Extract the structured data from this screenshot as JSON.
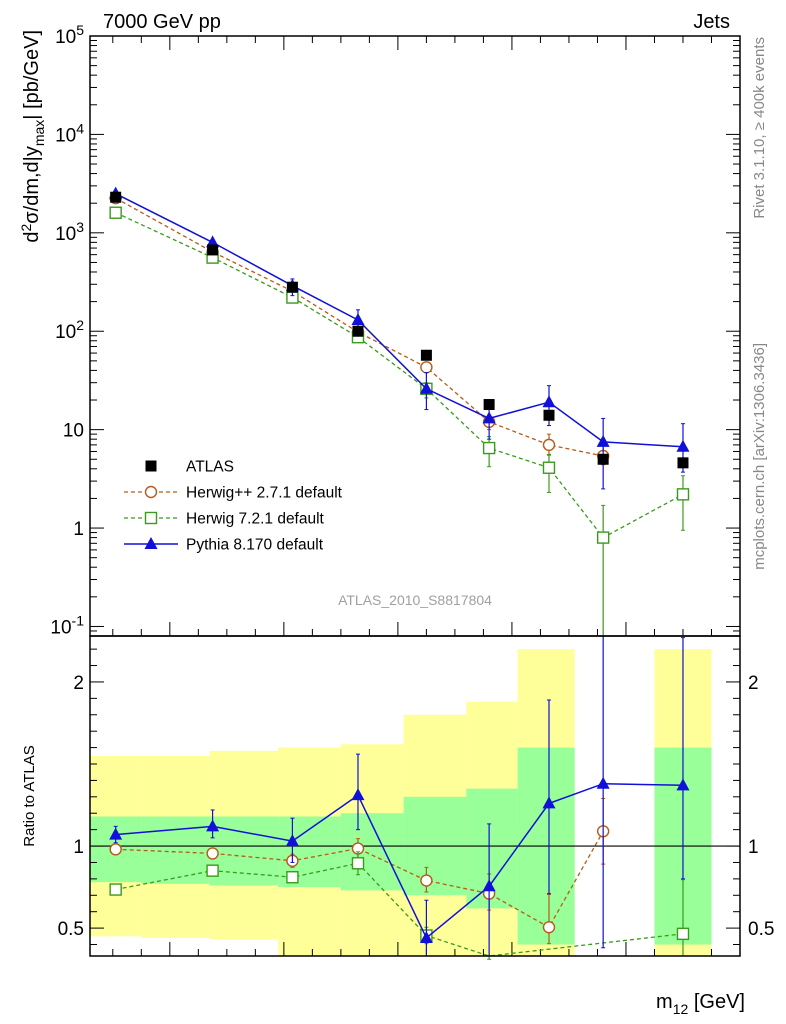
{
  "header": {
    "left": "7000 GeV pp",
    "right": "Jets"
  },
  "side_text": {
    "top": "Rivet 3.1.10, ≥ 400k events",
    "bottom": "mcplots.cern.ch [arXiv:1306.3436]"
  },
  "watermark": "ATLAS_2010_S8817804",
  "colors": {
    "data": "#000000",
    "herwigpp": "#b85a18",
    "herwig7": "#3a9a1c",
    "pythia": "#1010d8",
    "band_inner": "#99ff99",
    "band_outer": "#ffff99"
  },
  "chart_data": [
    {
      "type": "scatter",
      "panel": "main",
      "ylabel": "d²σ/dm,d|y_max| [pb/GeV]",
      "xlabel": "",
      "yscale": "log",
      "ylim": [
        0.08,
        100000
      ],
      "xlim": [
        0.6,
        12.0
      ],
      "yticks": [
        {
          "value": 0.1,
          "label": "10⁻¹"
        },
        {
          "value": 1,
          "label": "1"
        },
        {
          "value": 10,
          "label": "10"
        },
        {
          "value": 100,
          "label": "10²"
        },
        {
          "value": 1000,
          "label": "10³"
        },
        {
          "value": 10000,
          "label": "10⁴"
        },
        {
          "value": 100000,
          "label": "10⁵"
        }
      ],
      "bins": [
        [
          0.6,
          1.5
        ],
        [
          1.5,
          2.7
        ],
        [
          2.7,
          3.9
        ],
        [
          3.9,
          5.0
        ],
        [
          5.0,
          6.1
        ],
        [
          6.1,
          7.2
        ],
        [
          7.2,
          8.1
        ],
        [
          8.1,
          9.1
        ],
        [
          9.1,
          10.5
        ],
        [
          10.5,
          11.5
        ],
        [
          11.5,
          12.0
        ]
      ],
      "series": [
        {
          "name": "ATLAS",
          "key": "data",
          "x": [
            1.05,
            2.75,
            4.15,
            5.3,
            6.5,
            7.6,
            8.65,
            9.6,
            11.0
          ],
          "y": [
            2300,
            670,
            280,
            100,
            57,
            18,
            14,
            5,
            4.6
          ]
        },
        {
          "name": "Herwig++ 2.7.1 default",
          "key": "herwigpp",
          "x": [
            1.05,
            2.75,
            4.15,
            5.3,
            6.5,
            7.6,
            8.65,
            9.6
          ],
          "y": [
            2250,
            640,
            255,
            98,
            43,
            12,
            7,
            5.4
          ],
          "yerr": [
            [
              150,
              90
            ],
            [
              40,
              30
            ],
            [
              20,
              15
            ],
            [
              10,
              8
            ],
            [
              5,
              4
            ],
            [
              2,
              2
            ],
            [
              1.5,
              2
            ],
            [
              1,
              1.5
            ]
          ]
        },
        {
          "name": "Herwig 7.2.1 default",
          "key": "herwig7",
          "x": [
            1.05,
            2.75,
            4.15,
            5.3,
            6.5,
            7.6,
            8.65,
            9.6,
            11.0
          ],
          "y": [
            1600,
            560,
            220,
            87,
            26,
            6.5,
            4.1,
            0.8,
            2.2
          ],
          "yerr": [
            [
              100,
              80
            ],
            [
              40,
              30
            ],
            [
              15,
              12
            ],
            [
              8,
              6
            ],
            [
              5,
              4
            ],
            [
              2.3,
              2
            ],
            [
              1.8,
              1.5
            ],
            [
              0.79,
              0.9
            ],
            [
              1.25,
              1.2
            ]
          ]
        },
        {
          "name": "Pythia 8.170 default",
          "key": "pythia",
          "x": [
            1.05,
            2.75,
            4.15,
            5.3,
            6.5,
            7.6,
            8.65,
            9.6,
            11.0
          ],
          "y": [
            2500,
            800,
            290,
            130,
            26,
            13,
            19,
            7.5,
            6.7
          ],
          "yerr": [
            [
              150,
              120
            ],
            [
              60,
              50
            ],
            [
              60,
              50
            ],
            [
              30,
              35
            ],
            [
              10,
              12
            ],
            [
              5,
              6
            ],
            [
              8,
              9
            ],
            [
              5,
              5.5
            ],
            [
              3,
              4.8
            ]
          ]
        }
      ],
      "legend": {
        "position": "lower-left"
      }
    },
    {
      "type": "scatter",
      "panel": "ratio",
      "ylabel": "Ratio to ATLAS",
      "xlabel": "m₁₂ [GeV]",
      "ylim": [
        0.33,
        2.28
      ],
      "yticks": [
        {
          "value": 0.5,
          "label": "0.5"
        },
        {
          "value": 1,
          "label": "1"
        },
        {
          "value": 2,
          "label": "2"
        }
      ],
      "bands": {
        "inner": [
          [
            0.78,
            1.18
          ],
          [
            0.77,
            1.18
          ],
          [
            0.76,
            1.18
          ],
          [
            0.75,
            1.18
          ],
          [
            0.73,
            1.2
          ],
          [
            0.7,
            1.3
          ],
          [
            0.62,
            1.35
          ],
          [
            0.4,
            1.6
          ],
          [
            null,
            null
          ],
          [
            0.4,
            1.6
          ],
          [
            null,
            null
          ]
        ],
        "outer": [
          [
            0.45,
            1.55
          ],
          [
            0.44,
            1.55
          ],
          [
            0.43,
            1.58
          ],
          [
            0.33,
            1.6
          ],
          [
            0.33,
            1.62
          ],
          [
            0.33,
            1.8
          ],
          [
            0.33,
            1.88
          ],
          [
            0.33,
            2.2
          ],
          [
            null,
            null
          ],
          [
            0.33,
            2.2
          ],
          [
            null,
            null
          ]
        ]
      },
      "series": [
        {
          "name": "Herwig++ 2.7.1 default",
          "key": "herwigpp",
          "x": [
            1.05,
            2.75,
            4.15,
            5.3,
            6.5,
            7.6,
            8.65,
            9.6
          ],
          "y": [
            0.98,
            0.955,
            0.91,
            0.985,
            0.79,
            0.71,
            0.505,
            1.09
          ],
          "yerr": [
            [
              0.02,
              0.02
            ],
            [
              0.03,
              0.03
            ],
            [
              0.04,
              0.04
            ],
            [
              0.06,
              0.06
            ],
            [
              0.07,
              0.08
            ],
            [
              0.1,
              0.12
            ],
            [
              0.1,
              0.2
            ],
            [
              0.2,
              0.2
            ]
          ]
        },
        {
          "name": "Herwig 7.2.1 default",
          "key": "herwig7",
          "x": [
            1.05,
            2.75,
            4.15,
            5.3,
            6.5,
            7.6,
            11.0
          ],
          "y": [
            0.735,
            0.85,
            0.81,
            0.895,
            0.455,
            0.26,
            0.465
          ],
          "yerr": [
            [
              0.02,
              0.02
            ],
            [
              0.03,
              0.03
            ],
            [
              0.03,
              0.03
            ],
            [
              0.07,
              0.07
            ],
            [
              0.05,
              0.05
            ],
            [
              0.05,
              0.05
            ],
            [
              0.15,
              0.33
            ]
          ]
        },
        {
          "name": "Pythia 8.170 default",
          "key": "pythia",
          "x": [
            1.05,
            2.75,
            4.15,
            5.3,
            6.5,
            7.6,
            8.65,
            9.6,
            11.0
          ],
          "y": [
            1.07,
            1.12,
            1.03,
            1.31,
            0.44,
            0.755,
            1.26,
            1.38,
            1.37
          ],
          "yerr": [
            [
              0.05,
              0.05
            ],
            [
              0.07,
              0.1
            ],
            [
              0.13,
              0.14
            ],
            [
              0.21,
              0.25
            ],
            [
              0.12,
              0.23
            ],
            [
              0.5,
              0.38
            ],
            [
              0.55,
              0.63
            ],
            [
              1.0,
              1.2
            ],
            [
              0.57,
              0.9
            ]
          ]
        }
      ]
    }
  ]
}
